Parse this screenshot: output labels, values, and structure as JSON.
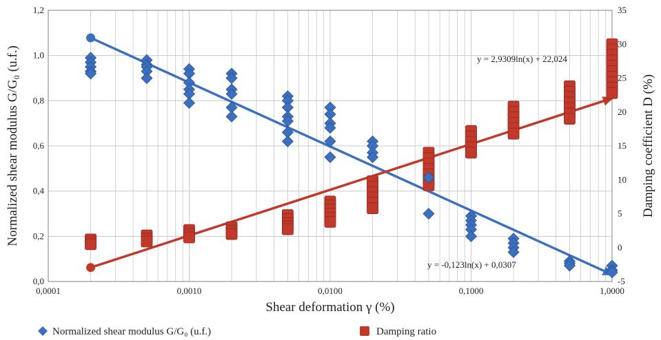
{
  "colors": {
    "shear": "#3d6fbf",
    "shear_dark": "#2a5597",
    "damping": "#c0392b",
    "damping_dark": "#8e2a20",
    "grid": "#c8c8c8",
    "axis": "#808080"
  },
  "chart_data": {
    "type": "scatter",
    "xlabel": "Shear deformation γ (%)",
    "ylabel_left": "Normalized shear modulus G/G₀ (u.f.)",
    "ylabel_right": "Damping coefficient D (%)",
    "x_scale": "log",
    "xlim": [
      0.0001,
      1.0
    ],
    "ylim_left": [
      0.0,
      1.2
    ],
    "ylim_right": [
      -5,
      35
    ],
    "x_ticks": [
      "0,0001",
      "0,0010",
      "0,0100",
      "0,1000",
      "1,0000"
    ],
    "y_left_ticks": [
      "0,0",
      "0,2",
      "0,4",
      "0,6",
      "0,8",
      "1,0",
      "1,2"
    ],
    "y_right_ticks": [
      "-5",
      "0",
      "5",
      "10",
      "15",
      "20",
      "25",
      "30",
      "35"
    ],
    "grid": true,
    "legend_position": "bottom",
    "series": [
      {
        "name": "Normalized shear modulus G/G₀ (u.f.)",
        "axis": "left",
        "marker": "diamond",
        "points": [
          [
            0.0002,
            0.99
          ],
          [
            0.0002,
            0.97
          ],
          [
            0.0002,
            0.95
          ],
          [
            0.0002,
            0.93
          ],
          [
            0.0002,
            0.92
          ],
          [
            0.0005,
            0.98
          ],
          [
            0.0005,
            0.96
          ],
          [
            0.0005,
            0.95
          ],
          [
            0.0005,
            0.93
          ],
          [
            0.0005,
            0.9
          ],
          [
            0.001,
            0.94
          ],
          [
            0.001,
            0.92
          ],
          [
            0.001,
            0.88
          ],
          [
            0.001,
            0.85
          ],
          [
            0.001,
            0.83
          ],
          [
            0.001,
            0.79
          ],
          [
            0.002,
            0.92
          ],
          [
            0.002,
            0.9
          ],
          [
            0.002,
            0.85
          ],
          [
            0.002,
            0.83
          ],
          [
            0.002,
            0.77
          ],
          [
            0.002,
            0.73
          ],
          [
            0.005,
            0.82
          ],
          [
            0.005,
            0.8
          ],
          [
            0.005,
            0.77
          ],
          [
            0.005,
            0.73
          ],
          [
            0.005,
            0.71
          ],
          [
            0.005,
            0.66
          ],
          [
            0.005,
            0.62
          ],
          [
            0.01,
            0.77
          ],
          [
            0.01,
            0.74
          ],
          [
            0.01,
            0.7
          ],
          [
            0.01,
            0.68
          ],
          [
            0.01,
            0.62
          ],
          [
            0.01,
            0.55
          ],
          [
            0.02,
            0.62
          ],
          [
            0.02,
            0.6
          ],
          [
            0.02,
            0.57
          ],
          [
            0.02,
            0.55
          ],
          [
            0.05,
            0.46
          ],
          [
            0.05,
            0.3
          ],
          [
            0.1,
            0.29
          ],
          [
            0.1,
            0.27
          ],
          [
            0.1,
            0.25
          ],
          [
            0.1,
            0.23
          ],
          [
            0.1,
            0.2
          ],
          [
            0.2,
            0.19
          ],
          [
            0.2,
            0.17
          ],
          [
            0.2,
            0.15
          ],
          [
            0.2,
            0.13
          ],
          [
            0.5,
            0.09
          ],
          [
            0.5,
            0.08
          ],
          [
            0.5,
            0.07
          ],
          [
            1.0,
            0.07
          ],
          [
            1.0,
            0.05
          ],
          [
            1.0,
            0.04
          ]
        ]
      },
      {
        "name": "Damping ratio",
        "axis": "right",
        "marker": "square",
        "points": [
          [
            0.0002,
            1.2
          ],
          [
            0.0002,
            0.8
          ],
          [
            0.0002,
            0.5
          ],
          [
            0.0005,
            1.8
          ],
          [
            0.0005,
            1.3
          ],
          [
            0.0005,
            0.9
          ],
          [
            0.001,
            2.6
          ],
          [
            0.001,
            2.0
          ],
          [
            0.001,
            1.5
          ],
          [
            0.002,
            3.0
          ],
          [
            0.002,
            2.5
          ],
          [
            0.002,
            2.0
          ],
          [
            0.005,
            4.8
          ],
          [
            0.005,
            4.2
          ],
          [
            0.005,
            3.6
          ],
          [
            0.005,
            3.1
          ],
          [
            0.005,
            2.7
          ],
          [
            0.01,
            6.8
          ],
          [
            0.01,
            6.2
          ],
          [
            0.01,
            5.6
          ],
          [
            0.01,
            5.0
          ],
          [
            0.01,
            4.4
          ],
          [
            0.01,
            3.8
          ],
          [
            0.02,
            9.8
          ],
          [
            0.02,
            9.0
          ],
          [
            0.02,
            8.2
          ],
          [
            0.02,
            7.4
          ],
          [
            0.02,
            6.6
          ],
          [
            0.02,
            5.8
          ],
          [
            0.05,
            14.0
          ],
          [
            0.05,
            13.2
          ],
          [
            0.05,
            12.4
          ],
          [
            0.05,
            11.6
          ],
          [
            0.05,
            10.8
          ],
          [
            0.05,
            10.0
          ],
          [
            0.05,
            9.2
          ],
          [
            0.1,
            17.2
          ],
          [
            0.1,
            16.4
          ],
          [
            0.1,
            15.6
          ],
          [
            0.1,
            14.8
          ],
          [
            0.1,
            14.0
          ],
          [
            0.2,
            20.8
          ],
          [
            0.2,
            20.0
          ],
          [
            0.2,
            19.2
          ],
          [
            0.2,
            18.4
          ],
          [
            0.2,
            17.6
          ],
          [
            0.2,
            16.8
          ],
          [
            0.5,
            23.8
          ],
          [
            0.5,
            23.0
          ],
          [
            0.5,
            22.2
          ],
          [
            0.5,
            21.4
          ],
          [
            0.5,
            20.6
          ],
          [
            0.5,
            19.8
          ],
          [
            0.5,
            19.0
          ],
          [
            1.0,
            30.0
          ],
          [
            1.0,
            29.2
          ],
          [
            1.0,
            28.4
          ],
          [
            1.0,
            27.6
          ],
          [
            1.0,
            26.8
          ],
          [
            1.0,
            26.0
          ],
          [
            1.0,
            25.2
          ],
          [
            1.0,
            24.4
          ],
          [
            1.0,
            23.6
          ],
          [
            1.0,
            22.8
          ]
        ]
      }
    ],
    "trendlines": [
      {
        "series": "Normalized shear modulus G/G₀ (u.f.)",
        "axis": "left",
        "equation": "y = -0,123ln(x) + 0,0307",
        "a": -0.123,
        "b": 0.0307,
        "x_range": [
          0.0002,
          1.0
        ]
      },
      {
        "series": "Damping ratio",
        "axis": "right",
        "equation": "y = 2,9309ln(x) + 22,024",
        "a": 2.9309,
        "b": 22.024,
        "x_range": [
          0.0002,
          1.0
        ]
      }
    ]
  }
}
